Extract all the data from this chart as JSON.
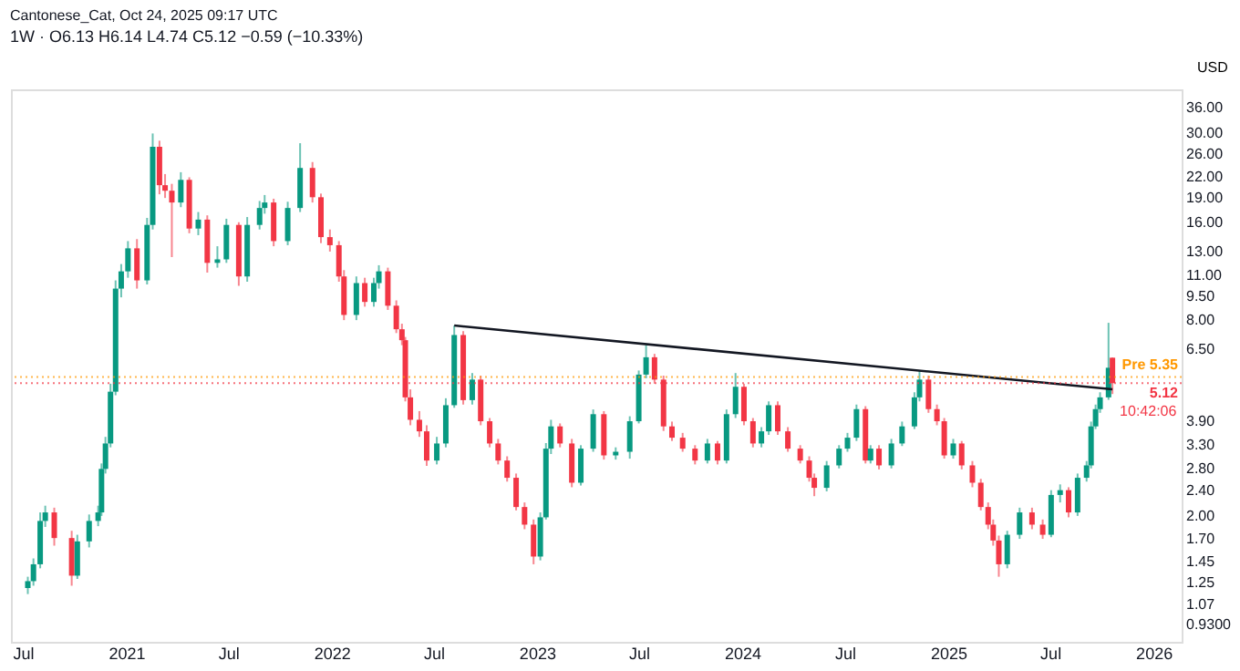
{
  "chart_data": {
    "type": "candlestick",
    "title": "1W · O6.13 H6.14 L4.74 C5.12 −0.59 (−10.33%)",
    "ylabel": "USD",
    "annotations": [
      "Cantonese_Cat, Oct 24, 2025 09:17 UTC",
      {
        "text": "10:42:06",
        "x": "2025-10-20",
        "y": 5.12
      }
    ],
    "x": [
      "2020-07-10",
      "2020-07-20",
      "2020-08-01",
      "2020-08-10",
      "2020-08-26",
      "2020-09-26",
      "2020-10-06",
      "2020-10-27",
      "2020-11-12",
      "2020-11-18",
      "2020-11-25",
      "2020-12-04",
      "2020-12-13",
      "2020-12-23",
      "2021-01-04",
      "2021-01-20",
      "2021-02-07",
      "2021-02-17",
      "2021-03-01",
      "2021-03-11",
      "2021-03-23",
      "2021-04-08",
      "2021-04-23",
      "2021-05-09",
      "2021-05-25",
      "2021-06-12",
      "2021-06-28",
      "2021-07-20",
      "2021-08-04",
      "2021-08-26",
      "2021-09-04",
      "2021-09-20",
      "2021-10-15",
      "2021-11-06",
      "2021-11-28",
      "2021-12-13",
      "2021-12-29",
      "2022-01-14",
      "2022-01-23",
      "2022-02-14",
      "2022-03-01",
      "2022-03-17",
      "2022-03-26",
      "2022-04-11",
      "2022-04-26",
      "2022-05-06",
      "2022-05-12",
      "2022-05-21",
      "2022-06-06",
      "2022-06-19",
      "2022-07-07",
      "2022-07-23",
      "2022-08-07",
      "2022-08-23",
      "2022-09-08",
      "2022-09-23",
      "2022-10-09",
      "2022-10-24",
      "2022-11-09",
      "2022-11-25",
      "2022-12-10",
      "2022-12-26",
      "2023-01-07",
      "2023-01-17",
      "2023-01-26",
      "2023-02-11",
      "2023-03-04",
      "2023-03-20",
      "2023-04-11",
      "2023-04-30",
      "2023-05-21",
      "2023-06-15",
      "2023-07-01",
      "2023-07-14",
      "2023-07-29",
      "2023-08-14",
      "2023-08-29",
      "2023-09-17",
      "2023-10-09",
      "2023-10-31",
      "2023-11-18",
      "2023-12-04",
      "2023-12-20",
      "2024-01-04",
      "2024-01-20",
      "2024-02-04",
      "2024-02-17",
      "2024-03-04",
      "2024-03-22",
      "2024-04-13",
      "2024-04-29",
      "2024-05-08",
      "2024-05-30",
      "2024-06-21",
      "2024-07-06",
      "2024-07-22",
      "2024-08-07",
      "2024-08-16",
      "2024-08-31",
      "2024-09-22",
      "2024-10-11",
      "2024-11-02",
      "2024-11-11",
      "2024-11-27",
      "2024-12-12",
      "2024-12-25",
      "2025-01-10",
      "2025-01-25",
      "2025-02-13",
      "2025-02-28",
      "2025-03-13",
      "2025-03-22",
      "2025-04-01",
      "2025-04-16",
      "2025-05-08",
      "2025-05-30",
      "2025-06-18",
      "2025-07-03",
      "2025-07-19",
      "2025-08-03",
      "2025-08-19",
      "2025-09-04",
      "2025-09-12",
      "2025-09-20",
      "2025-09-28",
      "2025-10-13",
      "2025-10-20"
    ],
    "ohlc": [
      [
        1.2,
        1.3,
        1.15,
        1.26
      ],
      [
        1.26,
        1.48,
        1.22,
        1.42
      ],
      [
        1.42,
        2.05,
        1.38,
        1.93
      ],
      [
        1.93,
        2.15,
        1.85,
        2.05
      ],
      [
        2.05,
        2.12,
        1.62,
        1.71
      ],
      [
        1.71,
        1.8,
        1.22,
        1.31
      ],
      [
        1.31,
        1.75,
        1.28,
        1.67
      ],
      [
        1.67,
        2.02,
        1.6,
        1.93
      ],
      [
        1.93,
        2.15,
        1.86,
        2.05
      ],
      [
        2.05,
        2.9,
        2.0,
        2.79
      ],
      [
        2.79,
        3.5,
        2.7,
        3.34
      ],
      [
        3.34,
        5.1,
        3.25,
        4.82
      ],
      [
        4.82,
        10.6,
        4.7,
        10.0
      ],
      [
        10.0,
        11.9,
        9.4,
        11.3
      ],
      [
        11.3,
        14.0,
        10.8,
        13.3
      ],
      [
        13.3,
        14.2,
        10.0,
        10.6
      ],
      [
        10.6,
        16.5,
        10.3,
        15.7
      ],
      [
        15.7,
        30.0,
        15.2,
        27.3
      ],
      [
        27.3,
        28.5,
        19.5,
        20.8
      ],
      [
        20.8,
        22.5,
        19.0,
        20.0
      ],
      [
        20.0,
        21.0,
        12.5,
        18.4
      ],
      [
        18.4,
        22.8,
        17.8,
        21.6
      ],
      [
        21.6,
        22.0,
        14.8,
        15.3
      ],
      [
        15.3,
        17.2,
        14.6,
        16.3
      ],
      [
        16.3,
        16.8,
        11.2,
        12.0
      ],
      [
        12.0,
        13.5,
        11.6,
        12.3
      ],
      [
        12.3,
        16.4,
        12.0,
        15.7
      ],
      [
        15.7,
        16.0,
        10.2,
        10.9
      ],
      [
        10.9,
        16.6,
        10.5,
        15.7
      ],
      [
        15.7,
        18.6,
        15.2,
        17.7
      ],
      [
        17.7,
        19.4,
        17.0,
        18.4
      ],
      [
        18.4,
        18.9,
        13.5,
        14.0
      ],
      [
        14.0,
        18.5,
        13.6,
        17.7
      ],
      [
        17.7,
        28.0,
        17.2,
        23.5
      ],
      [
        23.5,
        24.5,
        18.4,
        19.1
      ],
      [
        19.1,
        19.6,
        13.8,
        14.4
      ],
      [
        14.4,
        15.2,
        13.0,
        13.6
      ],
      [
        13.6,
        14.0,
        10.5,
        10.9
      ],
      [
        10.9,
        11.4,
        8.0,
        8.3
      ],
      [
        8.3,
        10.9,
        8.0,
        10.4
      ],
      [
        10.4,
        10.8,
        8.8,
        9.1
      ],
      [
        9.1,
        10.8,
        8.8,
        10.4
      ],
      [
        10.4,
        11.8,
        10.0,
        11.3
      ],
      [
        11.3,
        11.6,
        8.6,
        8.86
      ],
      [
        8.86,
        9.2,
        7.3,
        7.5
      ],
      [
        7.5,
        7.8,
        6.7,
        6.94
      ],
      [
        6.94,
        7.1,
        4.5,
        4.63
      ],
      [
        4.63,
        4.9,
        3.8,
        3.95
      ],
      [
        3.95,
        4.2,
        3.5,
        3.64
      ],
      [
        3.64,
        3.8,
        2.85,
        2.96
      ],
      [
        2.96,
        3.5,
        2.88,
        3.34
      ],
      [
        3.34,
        4.6,
        3.25,
        4.38
      ],
      [
        4.38,
        7.7,
        4.3,
        7.2
      ],
      [
        7.2,
        7.4,
        4.4,
        4.54
      ],
      [
        4.54,
        5.5,
        4.4,
        5.25
      ],
      [
        5.25,
        5.4,
        3.8,
        3.91
      ],
      [
        3.91,
        4.0,
        3.25,
        3.34
      ],
      [
        3.34,
        3.45,
        2.88,
        2.96
      ],
      [
        2.96,
        3.05,
        2.55,
        2.62
      ],
      [
        2.62,
        2.7,
        2.08,
        2.13
      ],
      [
        2.13,
        2.2,
        1.82,
        1.88
      ],
      [
        1.88,
        1.95,
        1.42,
        1.5
      ],
      [
        1.5,
        2.05,
        1.46,
        1.98
      ],
      [
        1.98,
        3.35,
        1.95,
        3.22
      ],
      [
        3.22,
        3.95,
        3.1,
        3.77
      ],
      [
        3.77,
        3.85,
        3.25,
        3.34
      ],
      [
        3.34,
        3.45,
        2.45,
        2.53
      ],
      [
        2.53,
        3.3,
        2.48,
        3.22
      ],
      [
        3.22,
        4.25,
        3.15,
        4.11
      ],
      [
        4.11,
        4.2,
        2.98,
        3.07
      ],
      [
        3.07,
        3.25,
        2.98,
        3.15
      ],
      [
        3.15,
        4.05,
        3.0,
        3.91
      ],
      [
        3.91,
        5.6,
        3.85,
        5.44
      ],
      [
        5.44,
        6.7,
        5.3,
        6.15
      ],
      [
        6.15,
        6.3,
        5.1,
        5.25
      ],
      [
        5.25,
        5.4,
        3.65,
        3.77
      ],
      [
        3.77,
        3.9,
        3.4,
        3.48
      ],
      [
        3.48,
        3.6,
        3.15,
        3.22
      ],
      [
        3.22,
        3.3,
        2.88,
        2.96
      ],
      [
        2.96,
        3.45,
        2.9,
        3.34
      ],
      [
        3.34,
        3.4,
        2.88,
        2.96
      ],
      [
        2.96,
        4.25,
        2.9,
        4.11
      ],
      [
        4.11,
        5.5,
        4.0,
        4.99
      ],
      [
        4.99,
        5.1,
        3.8,
        3.91
      ],
      [
        3.91,
        4.0,
        3.25,
        3.34
      ],
      [
        3.34,
        3.75,
        3.25,
        3.64
      ],
      [
        3.64,
        4.5,
        3.55,
        4.38
      ],
      [
        4.38,
        4.5,
        3.55,
        3.64
      ],
      [
        3.64,
        3.75,
        3.15,
        3.22
      ],
      [
        3.22,
        3.3,
        2.9,
        2.96
      ],
      [
        2.96,
        3.05,
        2.55,
        2.62
      ],
      [
        2.62,
        2.7,
        2.3,
        2.44
      ],
      [
        2.44,
        2.95,
        2.38,
        2.86
      ],
      [
        2.86,
        3.3,
        2.8,
        3.22
      ],
      [
        3.22,
        3.6,
        3.15,
        3.48
      ],
      [
        3.48,
        4.4,
        3.4,
        4.26
      ],
      [
        4.26,
        4.35,
        2.9,
        2.96
      ],
      [
        2.96,
        3.3,
        2.9,
        3.22
      ],
      [
        3.22,
        3.3,
        2.78,
        2.86
      ],
      [
        2.86,
        3.45,
        2.8,
        3.34
      ],
      [
        3.34,
        3.9,
        3.28,
        3.77
      ],
      [
        3.77,
        4.8,
        3.7,
        4.63
      ],
      [
        4.63,
        5.6,
        4.5,
        5.25
      ],
      [
        5.25,
        5.4,
        4.15,
        4.26
      ],
      [
        4.26,
        4.4,
        3.8,
        3.91
      ],
      [
        3.91,
        4.0,
        3.0,
        3.07
      ],
      [
        3.07,
        3.45,
        3.0,
        3.34
      ],
      [
        3.34,
        3.4,
        2.78,
        2.86
      ],
      [
        2.86,
        2.95,
        2.45,
        2.53
      ],
      [
        2.53,
        2.6,
        2.08,
        2.13
      ],
      [
        2.13,
        2.2,
        1.82,
        1.88
      ],
      [
        1.88,
        1.95,
        1.62,
        1.68
      ],
      [
        1.68,
        1.74,
        1.3,
        1.42
      ],
      [
        1.42,
        1.8,
        1.38,
        1.75
      ],
      [
        1.75,
        2.12,
        1.7,
        2.05
      ],
      [
        2.05,
        2.12,
        1.82,
        1.88
      ],
      [
        1.88,
        1.95,
        1.7,
        1.75
      ],
      [
        1.75,
        2.4,
        1.72,
        2.32
      ],
      [
        2.32,
        2.5,
        2.2,
        2.4
      ],
      [
        2.4,
        2.45,
        1.98,
        2.05
      ],
      [
        2.05,
        2.7,
        2.0,
        2.62
      ],
      [
        2.62,
        2.95,
        2.55,
        2.86
      ],
      [
        2.86,
        3.9,
        2.8,
        3.77
      ],
      [
        3.77,
        4.4,
        3.7,
        4.26
      ],
      [
        4.26,
        4.8,
        4.15,
        4.63
      ],
      [
        4.63,
        7.85,
        4.55,
        5.71
      ],
      [
        6.13,
        6.14,
        4.74,
        5.12
      ]
    ],
    "colors": [
      "#089981",
      "#089981",
      "#089981",
      "#089981",
      "#f23645",
      "#f23645",
      "#089981",
      "#089981",
      "#089981",
      "#089981",
      "#089981",
      "#089981",
      "#089981",
      "#089981",
      "#089981",
      "#f23645",
      "#089981",
      "#089981",
      "#f23645",
      "#f23645",
      "#f23645",
      "#089981",
      "#f23645",
      "#089981",
      "#f23645",
      "#089981",
      "#089981",
      "#f23645",
      "#089981",
      "#089981",
      "#089981",
      "#f23645",
      "#089981",
      "#089981",
      "#f23645",
      "#f23645",
      "#f23645",
      "#f23645",
      "#f23645",
      "#089981",
      "#f23645",
      "#089981",
      "#089981",
      "#f23645",
      "#f23645",
      "#f23645",
      "#f23645",
      "#f23645",
      "#f23645",
      "#f23645",
      "#089981",
      "#089981",
      "#089981",
      "#f23645",
      "#089981",
      "#f23645",
      "#f23645",
      "#f23645",
      "#f23645",
      "#f23645",
      "#f23645",
      "#f23645",
      "#089981",
      "#089981",
      "#089981",
      "#f23645",
      "#f23645",
      "#089981",
      "#089981",
      "#f23645",
      "#089981",
      "#089981",
      "#089981",
      "#089981",
      "#f23645",
      "#f23645",
      "#f23645",
      "#f23645",
      "#f23645",
      "#089981",
      "#f23645",
      "#089981",
      "#089981",
      "#f23645",
      "#f23645",
      "#089981",
      "#089981",
      "#f23645",
      "#f23645",
      "#f23645",
      "#f23645",
      "#f23645",
      "#089981",
      "#089981",
      "#089981",
      "#089981",
      "#f23645",
      "#089981",
      "#f23645",
      "#089981",
      "#089981",
      "#089981",
      "#089981",
      "#f23645",
      "#f23645",
      "#f23645",
      "#089981",
      "#f23645",
      "#f23645",
      "#f23645",
      "#f23645",
      "#f23645",
      "#f23645",
      "#089981",
      "#089981",
      "#f23645",
      "#f23645",
      "#089981",
      "#089981",
      "#f23645",
      "#089981",
      "#089981",
      "#089981",
      "#089981",
      "#089981",
      "#089981",
      "#f23645"
    ],
    "series": [
      {
        "type": "line",
        "x": [
          "2022-08-07",
          "2025-10-20"
        ],
        "values": [
          7.7,
          4.9
        ],
        "color": "#131722"
      }
    ],
    "ref_lines": [
      {
        "axis": "y",
        "value": 5.35,
        "label": "Pre 5.35",
        "color": "#ff9800",
        "line_style": "dotted"
      },
      {
        "axis": "y",
        "value": 5.12,
        "label": "5.12",
        "color": "#f23645",
        "line_style": "dotted"
      }
    ],
    "log": true,
    "grid": false,
    "ylim": [
      0.82,
      41
    ],
    "yticks": [
      {
        "value": 36,
        "label": "36.00"
      },
      {
        "value": 30,
        "label": "30.00"
      },
      {
        "value": 26,
        "label": "26.00"
      },
      {
        "value": 22,
        "label": "22.00"
      },
      {
        "value": 19,
        "label": "19.00"
      },
      {
        "value": 16,
        "label": "16.00"
      },
      {
        "value": 13,
        "label": "13.00"
      },
      {
        "value": 11,
        "label": "11.00"
      },
      {
        "value": 9.5,
        "label": "9.50"
      },
      {
        "value": 8,
        "label": "8.00"
      },
      {
        "value": 6.5,
        "label": "6.50"
      },
      {
        "value": 3.9,
        "label": "3.90"
      },
      {
        "value": 3.3,
        "label": "3.30"
      },
      {
        "value": 2.8,
        "label": "2.80"
      },
      {
        "value": 2.4,
        "label": "2.40"
      },
      {
        "value": 2,
        "label": "2.00"
      },
      {
        "value": 1.7,
        "label": "1.70"
      },
      {
        "value": 1.45,
        "label": "1.45"
      },
      {
        "value": 1.25,
        "label": "1.25"
      },
      {
        "value": 1.07,
        "label": "1.07"
      },
      {
        "value": 0.93,
        "label": "0.9300"
      }
    ],
    "xlim": [
      "2020-06-10",
      "2026-02-20"
    ],
    "xticks": [
      {
        "value": "2020-07-01",
        "label": "Jul"
      },
      {
        "value": "2021-01-01",
        "label": "2021"
      },
      {
        "value": "2021-07-01",
        "label": "Jul"
      },
      {
        "value": "2022-01-01",
        "label": "2022"
      },
      {
        "value": "2022-07-01",
        "label": "Jul"
      },
      {
        "value": "2023-01-01",
        "label": "2023"
      },
      {
        "value": "2023-07-01",
        "label": "Jul"
      },
      {
        "value": "2024-01-01",
        "label": "2024"
      },
      {
        "value": "2024-07-01",
        "label": "Jul"
      },
      {
        "value": "2025-01-01",
        "label": "2025"
      },
      {
        "value": "2025-07-01",
        "label": "Jul"
      },
      {
        "value": "2026-01-01",
        "label": "2026"
      }
    ]
  }
}
